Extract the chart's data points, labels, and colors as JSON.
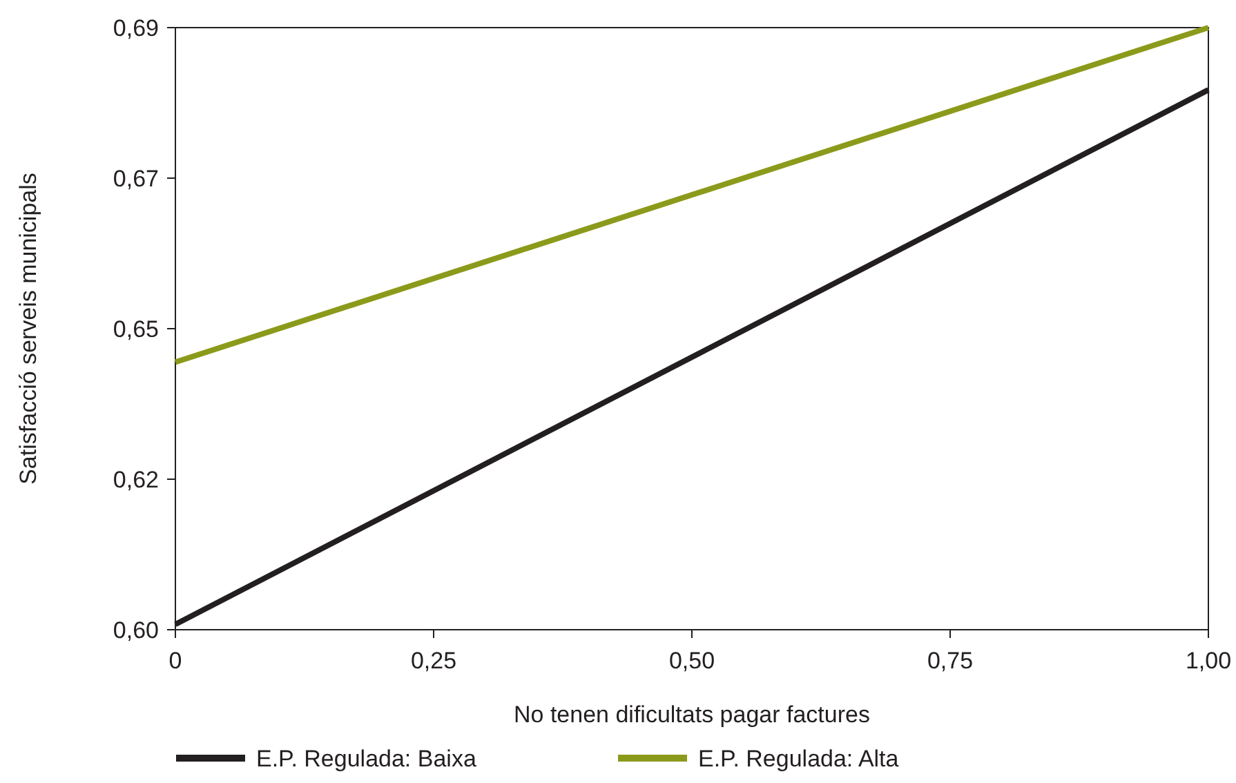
{
  "chart_data": {
    "type": "line",
    "xlabel": "No tenen dificultats pagar factures",
    "ylabel": "Satisfacció serveis municipals",
    "x": [
      0,
      1
    ],
    "series": [
      {
        "name": "E.P. Regulada: Baixa",
        "color": "#231f20",
        "values": [
          0.6008,
          0.6807
        ]
      },
      {
        "name": "E.P. Regulada: Alta",
        "color": "#8c9a1b",
        "values": [
          0.64,
          0.69
        ]
      }
    ],
    "xlim": [
      0,
      1
    ],
    "xticks": [
      0,
      {
        "value": 0.25,
        "label": "0,25"
      },
      {
        "value": 0.5,
        "label": "0,50"
      },
      {
        "value": 0.75,
        "label": "0,75"
      },
      {
        "value": 1,
        "label": "1,00"
      }
    ],
    "ylim": [
      0.6,
      0.69
    ],
    "yticks": [
      {
        "value": 0.6,
        "label": "0,60"
      },
      {
        "value": 0.6225,
        "label": "0,62"
      },
      {
        "value": 0.645,
        "label": "0,65"
      },
      {
        "value": 0.6675,
        "label": "0,67"
      },
      {
        "value": 0.69,
        "label": "0,69"
      }
    ],
    "grid": false,
    "legend": "bottom",
    "marker": "none",
    "line_style": "solid"
  }
}
